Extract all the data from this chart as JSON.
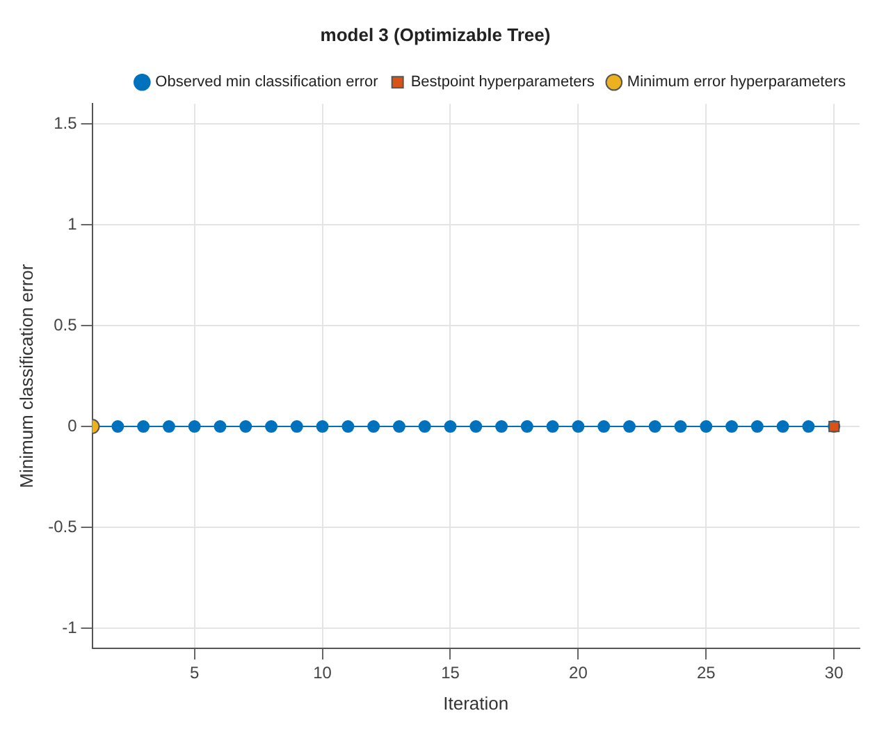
{
  "chart_data": {
    "type": "line",
    "title": "model 3 (Optimizable Tree)",
    "xlabel": "Iteration",
    "ylabel": "Minimum classification error",
    "x": [
      1,
      2,
      3,
      4,
      5,
      6,
      7,
      8,
      9,
      10,
      11,
      12,
      13,
      14,
      15,
      16,
      17,
      18,
      19,
      20,
      21,
      22,
      23,
      24,
      25,
      26,
      27,
      28,
      29,
      30
    ],
    "series": [
      {
        "name": "Observed min classification error",
        "marker": "circle",
        "color": "#0072bd",
        "values": [
          0,
          0,
          0,
          0,
          0,
          0,
          0,
          0,
          0,
          0,
          0,
          0,
          0,
          0,
          0,
          0,
          0,
          0,
          0,
          0,
          0,
          0,
          0,
          0,
          0,
          0,
          0,
          0,
          0,
          0
        ]
      },
      {
        "name": "Bestpoint hyperparameters",
        "type": "scatter",
        "marker": "square",
        "color": "#d95319",
        "x": [
          30
        ],
        "values": [
          0
        ]
      },
      {
        "name": "Minimum error hyperparameters",
        "type": "scatter",
        "marker": "circle",
        "color": "#edb120",
        "x": [
          1
        ],
        "values": [
          0
        ]
      }
    ],
    "xlim": [
      1,
      31
    ],
    "xticks": [
      5,
      10,
      15,
      20,
      25,
      30
    ],
    "ylim": [
      -1.1,
      1.6
    ],
    "yticks": [
      -1,
      -0.5,
      0,
      0.5,
      1,
      1.5
    ],
    "grid": true,
    "legend": "top right"
  }
}
